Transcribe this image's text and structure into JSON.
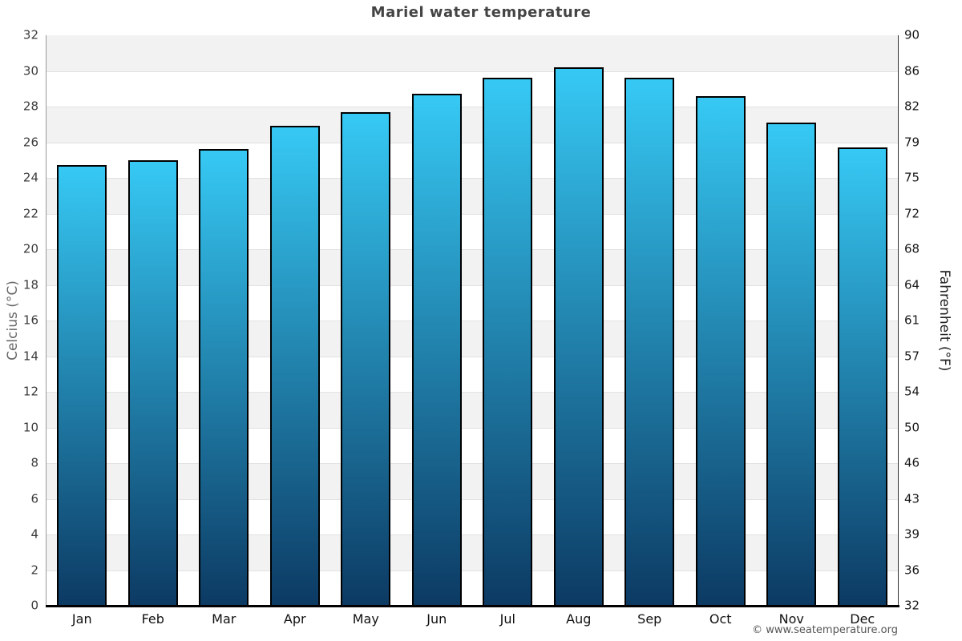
{
  "title": "Mariel water temperature",
  "chart_data": {
    "type": "bar",
    "title": "Mariel water temperature",
    "categories": [
      "Jan",
      "Feb",
      "Mar",
      "Apr",
      "May",
      "Jun",
      "Jul",
      "Aug",
      "Sep",
      "Oct",
      "Nov",
      "Dec"
    ],
    "series": [
      {
        "name": "Water temperature (°C)",
        "values": [
          24.7,
          25.0,
          25.6,
          26.9,
          27.7,
          28.7,
          29.6,
          30.2,
          29.6,
          28.6,
          27.1,
          25.7
        ]
      }
    ],
    "ylabel_left": "Celcius (°C)",
    "ylabel_right": "Fahrenheit (°F)",
    "ylim_celsius": [
      0,
      32
    ],
    "y_left_ticks": [
      32,
      30,
      28,
      26,
      24,
      22,
      20,
      18,
      16,
      14,
      12,
      10,
      8,
      6,
      4,
      2,
      0
    ],
    "y_right_ticks": [
      90,
      86,
      82,
      79,
      75,
      72,
      68,
      64,
      61,
      57,
      54,
      50,
      46,
      43,
      39,
      36,
      32
    ],
    "grid": "alternating horizontal bands every 2°C, gray band at top",
    "legend": "none"
  },
  "footer": {
    "copyright": "© www.seatemperature.org"
  },
  "colors": {
    "bar_gradient_top": "#36c9f4",
    "bar_gradient_bottom": "#0c3a63",
    "bar_border": "#000000",
    "band_gray": "#f2f2f2",
    "band_white": "#ffffff",
    "gridline": "#e2e2e2",
    "axis_left_line": "#999999",
    "axis_right_line": "#333333",
    "axis_bottom_line": "#000000",
    "title_text": "#444444",
    "footer_text": "#555555"
  }
}
